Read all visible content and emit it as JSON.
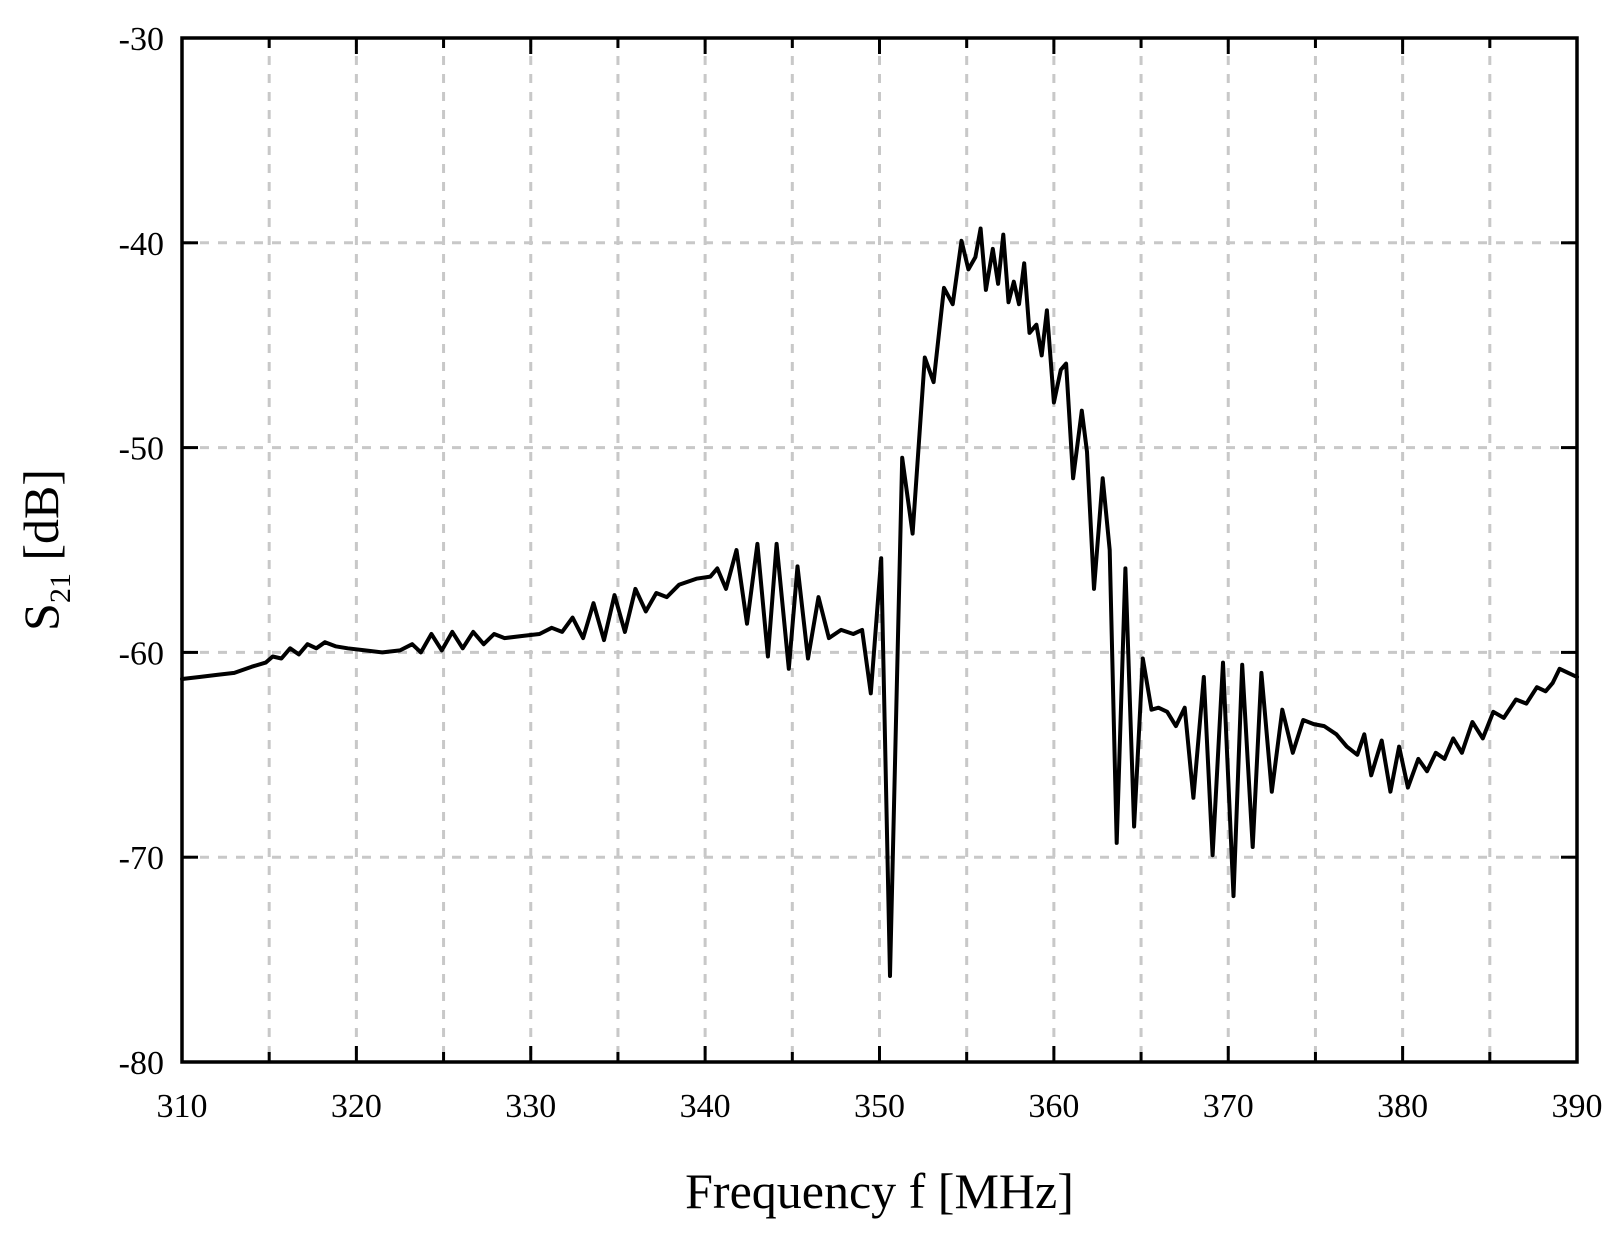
{
  "chart_data": {
    "type": "line",
    "title": "",
    "xlabel": "Frequency f [MHz]",
    "ylabel_main": "S",
    "ylabel_sub": "21",
    "ylabel_unit": " [dB]",
    "xlim": [
      310,
      390
    ],
    "ylim": [
      -80,
      -30
    ],
    "xticks": [
      310,
      320,
      330,
      340,
      350,
      360,
      370,
      380,
      390
    ],
    "yticks": [
      -80,
      -70,
      -60,
      -50,
      -40,
      -30
    ],
    "grid": true,
    "series": [
      {
        "color": "#000000",
        "points": [
          [
            310.0,
            -61.3
          ],
          [
            311.0,
            -61.2
          ],
          [
            312.0,
            -61.1
          ],
          [
            313.0,
            -61.0
          ],
          [
            314.0,
            -60.7
          ],
          [
            314.8,
            -60.5
          ],
          [
            315.2,
            -60.2
          ],
          [
            315.7,
            -60.3
          ],
          [
            316.2,
            -59.8
          ],
          [
            316.7,
            -60.1
          ],
          [
            317.2,
            -59.6
          ],
          [
            317.7,
            -59.8
          ],
          [
            318.2,
            -59.5
          ],
          [
            318.8,
            -59.7
          ],
          [
            319.5,
            -59.8
          ],
          [
            320.5,
            -59.9
          ],
          [
            321.5,
            -60.0
          ],
          [
            322.5,
            -59.9
          ],
          [
            323.2,
            -59.6
          ],
          [
            323.7,
            -60.0
          ],
          [
            324.3,
            -59.1
          ],
          [
            324.9,
            -59.9
          ],
          [
            325.5,
            -59.0
          ],
          [
            326.1,
            -59.8
          ],
          [
            326.7,
            -59.0
          ],
          [
            327.3,
            -59.6
          ],
          [
            327.9,
            -59.1
          ],
          [
            328.5,
            -59.3
          ],
          [
            329.5,
            -59.2
          ],
          [
            330.5,
            -59.1
          ],
          [
            331.2,
            -58.8
          ],
          [
            331.8,
            -59.0
          ],
          [
            332.4,
            -58.3
          ],
          [
            333.0,
            -59.3
          ],
          [
            333.6,
            -57.6
          ],
          [
            334.2,
            -59.4
          ],
          [
            334.8,
            -57.2
          ],
          [
            335.4,
            -59.0
          ],
          [
            336.0,
            -56.9
          ],
          [
            336.6,
            -58.0
          ],
          [
            337.2,
            -57.1
          ],
          [
            337.8,
            -57.3
          ],
          [
            338.5,
            -56.7
          ],
          [
            339.5,
            -56.4
          ],
          [
            340.3,
            -56.3
          ],
          [
            340.7,
            -55.9
          ],
          [
            341.2,
            -56.9
          ],
          [
            341.8,
            -55.0
          ],
          [
            342.4,
            -58.6
          ],
          [
            343.0,
            -54.7
          ],
          [
            343.6,
            -60.2
          ],
          [
            344.1,
            -54.7
          ],
          [
            344.8,
            -60.8
          ],
          [
            345.3,
            -55.8
          ],
          [
            345.9,
            -60.3
          ],
          [
            346.5,
            -57.3
          ],
          [
            347.1,
            -59.3
          ],
          [
            347.8,
            -58.9
          ],
          [
            348.5,
            -59.1
          ],
          [
            349.0,
            -58.9
          ],
          [
            349.5,
            -62.0
          ],
          [
            350.1,
            -55.4
          ],
          [
            350.6,
            -75.8
          ],
          [
            351.3,
            -50.5
          ],
          [
            351.9,
            -54.2
          ],
          [
            352.6,
            -45.6
          ],
          [
            353.1,
            -46.8
          ],
          [
            353.7,
            -42.2
          ],
          [
            354.2,
            -43.0
          ],
          [
            354.7,
            -39.9
          ],
          [
            355.1,
            -41.3
          ],
          [
            355.5,
            -40.7
          ],
          [
            355.8,
            -39.3
          ],
          [
            356.1,
            -42.3
          ],
          [
            356.5,
            -40.3
          ],
          [
            356.8,
            -42.0
          ],
          [
            357.1,
            -39.6
          ],
          [
            357.4,
            -42.9
          ],
          [
            357.7,
            -41.9
          ],
          [
            358.0,
            -43.0
          ],
          [
            358.3,
            -41.0
          ],
          [
            358.6,
            -44.4
          ],
          [
            359.0,
            -44.0
          ],
          [
            359.3,
            -45.5
          ],
          [
            359.6,
            -43.3
          ],
          [
            360.0,
            -47.8
          ],
          [
            360.4,
            -46.2
          ],
          [
            360.7,
            -45.9
          ],
          [
            361.1,
            -51.5
          ],
          [
            361.6,
            -48.2
          ],
          [
            361.9,
            -50.2
          ],
          [
            362.3,
            -56.9
          ],
          [
            362.8,
            -51.5
          ],
          [
            363.2,
            -55.0
          ],
          [
            363.6,
            -69.3
          ],
          [
            364.1,
            -55.9
          ],
          [
            364.6,
            -68.5
          ],
          [
            365.1,
            -60.3
          ],
          [
            365.6,
            -62.8
          ],
          [
            366.0,
            -62.7
          ],
          [
            366.5,
            -62.9
          ],
          [
            367.0,
            -63.6
          ],
          [
            367.5,
            -62.7
          ],
          [
            368.0,
            -67.1
          ],
          [
            368.6,
            -61.2
          ],
          [
            369.1,
            -69.9
          ],
          [
            369.7,
            -60.5
          ],
          [
            370.3,
            -71.9
          ],
          [
            370.8,
            -60.6
          ],
          [
            371.4,
            -69.5
          ],
          [
            371.9,
            -61.0
          ],
          [
            372.5,
            -66.8
          ],
          [
            373.1,
            -62.8
          ],
          [
            373.7,
            -64.9
          ],
          [
            374.3,
            -63.3
          ],
          [
            374.9,
            -63.5
          ],
          [
            375.5,
            -63.6
          ],
          [
            376.2,
            -64.0
          ],
          [
            376.8,
            -64.6
          ],
          [
            377.4,
            -65.0
          ],
          [
            377.8,
            -64.0
          ],
          [
            378.2,
            -66.0
          ],
          [
            378.8,
            -64.3
          ],
          [
            379.3,
            -66.8
          ],
          [
            379.8,
            -64.6
          ],
          [
            380.3,
            -66.6
          ],
          [
            380.9,
            -65.2
          ],
          [
            381.4,
            -65.8
          ],
          [
            381.9,
            -64.9
          ],
          [
            382.4,
            -65.2
          ],
          [
            382.9,
            -64.2
          ],
          [
            383.4,
            -64.9
          ],
          [
            384.0,
            -63.4
          ],
          [
            384.6,
            -64.2
          ],
          [
            385.2,
            -62.9
          ],
          [
            385.8,
            -63.2
          ],
          [
            386.5,
            -62.3
          ],
          [
            387.1,
            -62.5
          ],
          [
            387.7,
            -61.7
          ],
          [
            388.2,
            -61.9
          ],
          [
            388.6,
            -61.5
          ],
          [
            389.0,
            -60.8
          ],
          [
            389.5,
            -61.0
          ],
          [
            390.0,
            -61.2
          ]
        ]
      }
    ]
  }
}
